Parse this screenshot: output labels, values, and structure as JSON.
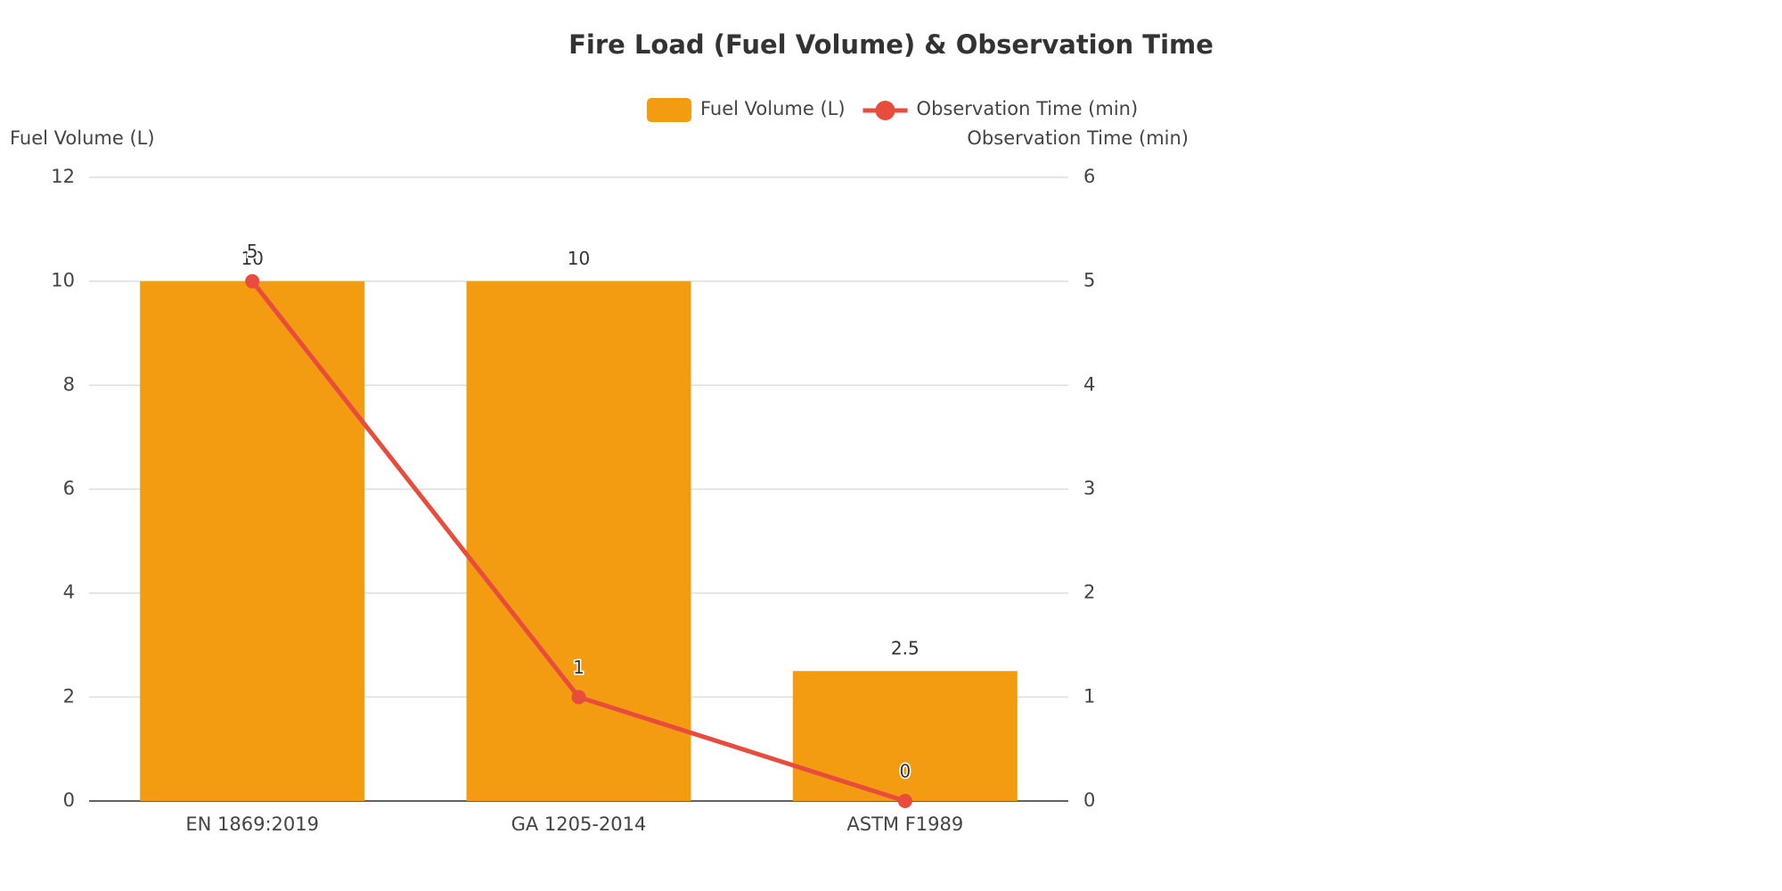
{
  "chart_data": {
    "type": "bar_line",
    "title": "Fire Load (Fuel Volume) & Observation Time",
    "categories": [
      "EN 1869:2019",
      "GA 1205-2014",
      "ASTM F1989"
    ],
    "series": [
      {
        "name": "Fuel Volume (L)",
        "type": "bar",
        "color": "#f39c12",
        "values": [
          10,
          10,
          2.5
        ]
      },
      {
        "name": "Observation Time (min)",
        "type": "line",
        "axis": "y2",
        "color": "#e74c3c",
        "values": [
          5,
          1,
          0
        ]
      }
    ],
    "ylabel": "Fuel Volume (L)",
    "y2label": "Observation Time (min)",
    "ylim": [
      0,
      12
    ],
    "yticks": [
      0,
      2,
      4,
      6,
      8,
      10,
      12
    ],
    "y2lim": [
      0,
      6
    ],
    "y2ticks": [
      0,
      1,
      2,
      3,
      4,
      5,
      6
    ],
    "grid": true,
    "legend": "top"
  }
}
